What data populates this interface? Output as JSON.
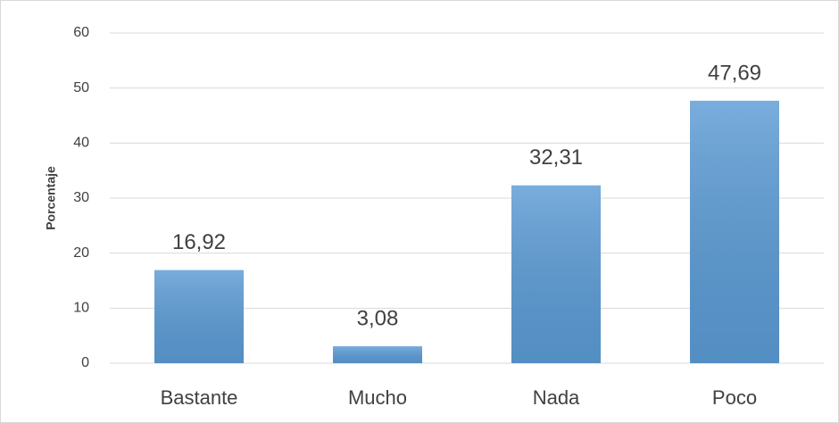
{
  "chart_data": {
    "type": "bar",
    "y_label": "Porcentaje",
    "categories": [
      "Bastante",
      "Mucho",
      "Nada",
      "Poco"
    ],
    "values": [
      16.92,
      3.08,
      32.31,
      47.69
    ],
    "value_labels": [
      "16,92",
      "3,08",
      "32,31",
      "47,69"
    ],
    "color": "#5b9bd5",
    "ylim": [
      0,
      60
    ],
    "yticks": [
      0,
      10,
      20,
      30,
      40,
      50,
      60
    ],
    "grid": true
  }
}
